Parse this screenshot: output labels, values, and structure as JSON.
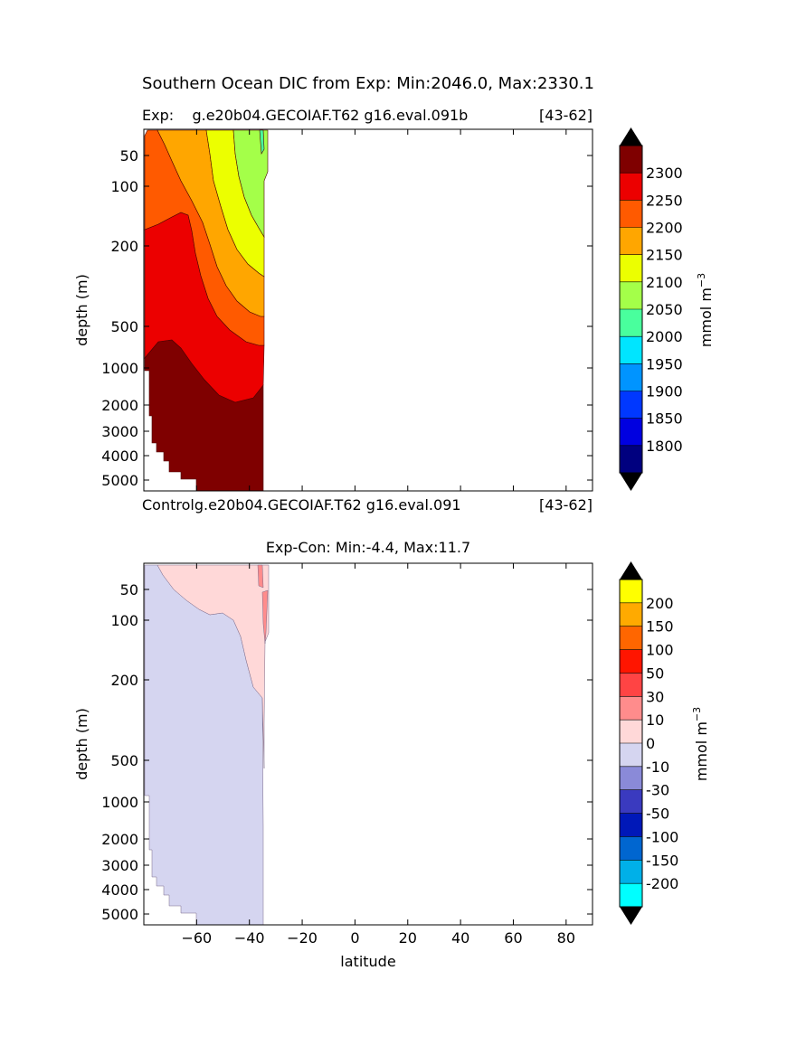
{
  "figure": {
    "suptitle": "Southern Ocean DIC from Exp: Min:2046.0, Max:2330.1"
  },
  "chart_data": [
    {
      "type": "heatmap",
      "panel": "exp",
      "title_left": "Exp:    g.e20b04.GECOIAF.T62 g16.eval.091b",
      "title_right": "[43-62]",
      "xlabel": "",
      "ylabel": "depth (m)",
      "xlim": [
        -80,
        90
      ],
      "y_scale": "nonlinear depth (inverted)",
      "yticks": [
        50,
        100,
        200,
        500,
        1000,
        2000,
        3000,
        4000,
        5000
      ],
      "colorbar": {
        "label": "mmol m",
        "label_superscript": "−3",
        "levels": [
          1750,
          1800,
          1850,
          1900,
          1950,
          2000,
          2050,
          2100,
          2150,
          2200,
          2250,
          2300,
          2350
        ],
        "tick_labels": [
          "1800",
          "1850",
          "1900",
          "1950",
          "2000",
          "2050",
          "2100",
          "2150",
          "2200",
          "2250",
          "2300"
        ],
        "colors": [
          "#00007f",
          "#0000e0",
          "#0038ff",
          "#0094ff",
          "#00e5ff",
          "#49ff9d",
          "#a4ff49",
          "#ecff00",
          "#ffa600",
          "#ff5a00",
          "#ec0000",
          "#7f0000"
        ],
        "under_color": "#000000",
        "over_color": "#000000"
      },
      "levels_present": [
        2050,
        2100,
        2150,
        2200,
        2250,
        2300
      ],
      "lat_extent": [
        -80,
        -33
      ],
      "value_min": 2046.0,
      "value_max": 2330.1
    },
    {
      "type": "heatmap",
      "panel": "control",
      "title_left": "Controlg.e20b04.GECOIAF.T62 g16.eval.091",
      "title_right": "[43-62]"
    },
    {
      "type": "heatmap",
      "panel": "diff",
      "title": "Exp-Con: Min:-4.4, Max:11.7",
      "xlabel": "latitude",
      "ylabel": "depth (m)",
      "xlim": [
        -80,
        90
      ],
      "xticks": [
        -60,
        -40,
        -20,
        0,
        20,
        40,
        60,
        80
      ],
      "xtick_labels": [
        "−60",
        "−40",
        "−20",
        "0",
        "20",
        "40",
        "60",
        "80"
      ],
      "yticks": [
        50,
        100,
        200,
        500,
        1000,
        2000,
        3000,
        4000,
        5000
      ],
      "colorbar": {
        "label": "mmol m",
        "label_superscript": "−3",
        "levels": [
          -250,
          -200,
          -150,
          -100,
          -50,
          -30,
          -10,
          0,
          10,
          30,
          50,
          100,
          150,
          200,
          250
        ],
        "tick_labels": [
          "-200",
          "-150",
          "-100",
          "-50",
          "-30",
          "-10",
          "0",
          "10",
          "30",
          "50",
          "100",
          "150",
          "200"
        ],
        "colors": [
          "#00ffff",
          "#00b0e8",
          "#0066d0",
          "#0018b8",
          "#3a3abf",
          "#8a8ad8",
          "#d5d5f0",
          "#ffd8d8",
          "#ff8c8c",
          "#ff4444",
          "#ff1500",
          "#ff6600",
          "#ffaa00",
          "#ffff00"
        ],
        "under_color": "#000000",
        "over_color": "#000000"
      },
      "levels_present": [
        -10,
        0,
        10
      ],
      "value_min": -4.4,
      "value_max": 11.7
    }
  ]
}
